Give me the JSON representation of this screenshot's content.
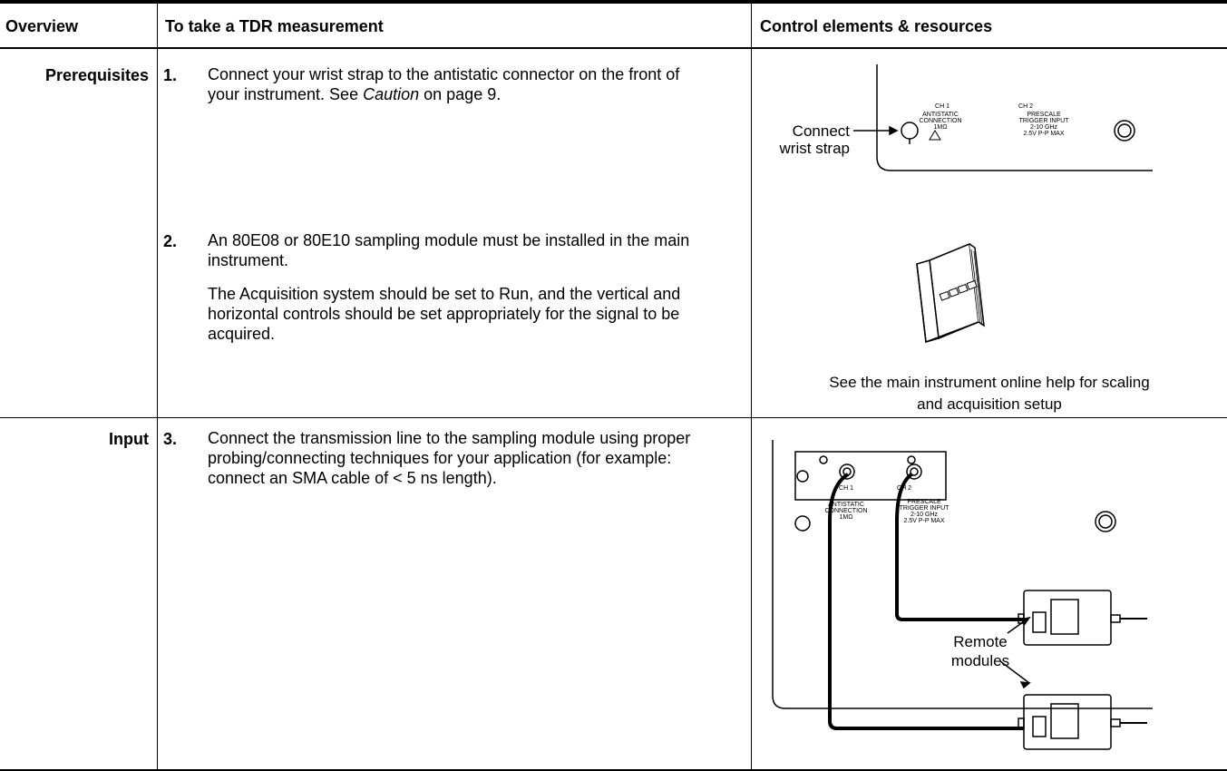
{
  "header": {
    "columns": [
      "Overview",
      "To take a TDR measurement",
      "Control elements & resources"
    ]
  },
  "rows": [
    {
      "label": "Prerequisites",
      "steps": [
        {
          "number": "1.",
          "paragraphs": [
            [
              "Connect your wrist strap to the antistatic connector on the front of your instrument. See ",
              "Caution",
              " on page 9."
            ]
          ]
        },
        {
          "number": "2.",
          "paragraphs": [
            "An 80E08 or 80E10 sampling module must be installed in the main instrument.",
            "The Acquisition system should be set to Run, and the vertical and horizontal controls should be set appropriately for the signal to be acquired."
          ]
        }
      ],
      "figures": [
        {
          "callout": [
            "Connect",
            "wrist strap"
          ],
          "panel": {
            "ch1": "CH 1",
            "ch1_text": [
              "ANTISTATIC",
              "CONNECTION",
              "1MΩ"
            ],
            "ch2": "CH 2",
            "ch2_text": [
              "PRESCALE",
              "TRIGGER INPUT",
              "2-10 GHz",
              "2.5V P-P MAX"
            ]
          }
        },
        {
          "caption": [
            "See the main instrument online help for scaling",
            "and acquisition setup"
          ]
        }
      ]
    },
    {
      "label": "Input",
      "steps": [
        {
          "number": "3.",
          "paragraphs": [
            "Connect the transmission line to the sampling module using proper probing/connecting techniques for your application (for example: connect an SMA cable of < 5 ns length)."
          ]
        }
      ],
      "figures": [
        {
          "callout": [
            "Remote",
            "modules"
          ],
          "panel": {
            "ch1": "CH 1",
            "ch1_text": [
              "ANTISTATIC",
              "CONNECTION",
              "1MΩ"
            ],
            "ch2": "CH 2",
            "ch2_text": [
              "PRESCALE",
              "TRIGGER INPUT",
              "2-10 GHz",
              "2.5V P-P MAX"
            ]
          }
        }
      ]
    }
  ]
}
